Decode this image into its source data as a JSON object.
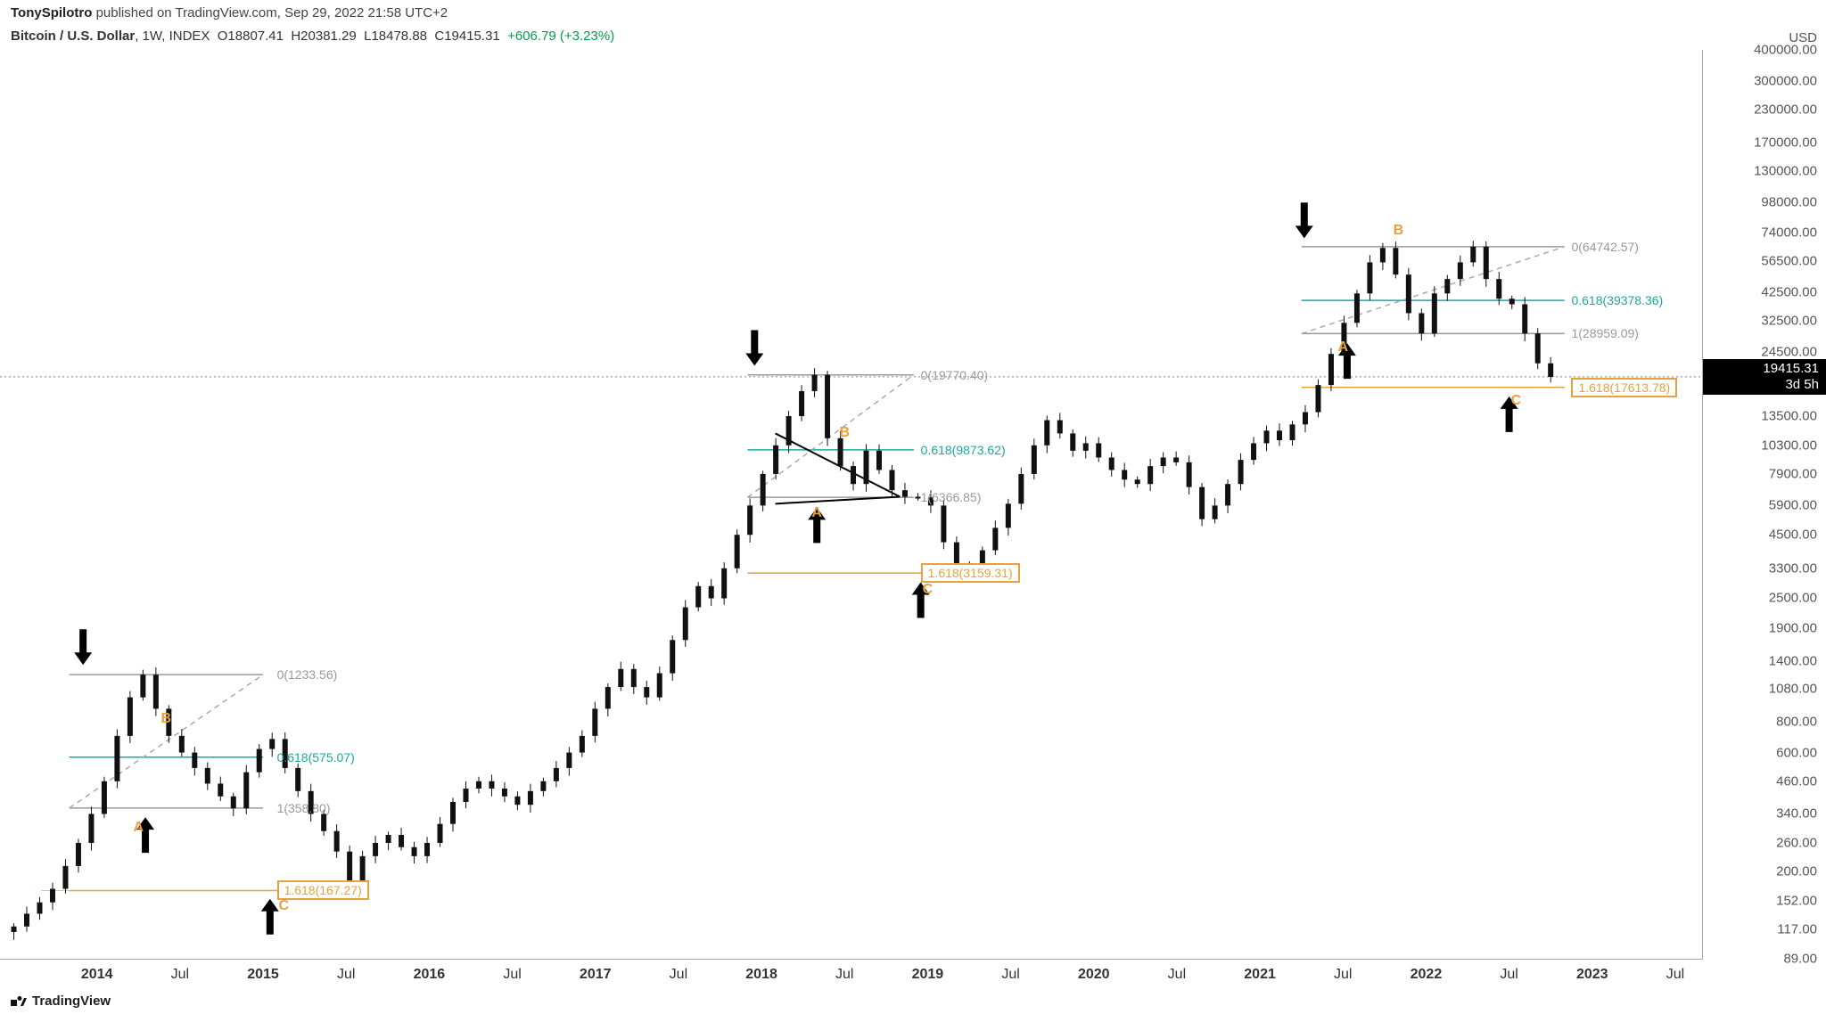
{
  "header": {
    "author": "TonySpilotro",
    "published_on": "published on TradingView.com,",
    "date": "Sep 29, 2022 21:58 UTC+2"
  },
  "symbol": {
    "name": "Bitcoin / U.S. Dollar",
    "interval": "1W",
    "exchange": "INDEX",
    "O": "18807.41",
    "H": "20381.29",
    "L": "18478.88",
    "C": "19415.31",
    "change": "+606.79",
    "change_pct": "(+3.23%)"
  },
  "y_axis": {
    "unit": "USD",
    "scale": "log",
    "ticks": [
      "400000.00",
      "300000.00",
      "230000.00",
      "170000.00",
      "130000.00",
      "98000.00",
      "74000.00",
      "56500.00",
      "42500.00",
      "32500.00",
      "24500.00",
      "19415.31",
      "13500.00",
      "10300.00",
      "7900.00",
      "5900.00",
      "4500.00",
      "3300.00",
      "2500.00",
      "1900.00",
      "1400.00",
      "1080.00",
      "800.00",
      "600.00",
      "460.00",
      "340.00",
      "260.00",
      "200.00",
      "152.00",
      "117.00",
      "89.00"
    ]
  },
  "x_axis": {
    "ticks": [
      {
        "label": "2014",
        "bold": true
      },
      {
        "label": "Jul",
        "bold": false
      },
      {
        "label": "2015",
        "bold": true
      },
      {
        "label": "Jul",
        "bold": false
      },
      {
        "label": "2016",
        "bold": true
      },
      {
        "label": "Jul",
        "bold": false
      },
      {
        "label": "2017",
        "bold": true
      },
      {
        "label": "Jul",
        "bold": false
      },
      {
        "label": "2018",
        "bold": true
      },
      {
        "label": "Jul",
        "bold": false
      },
      {
        "label": "2019",
        "bold": true
      },
      {
        "label": "Jul",
        "bold": false
      },
      {
        "label": "2020",
        "bold": true
      },
      {
        "label": "Jul",
        "bold": false
      },
      {
        "label": "2021",
        "bold": true
      },
      {
        "label": "Jul",
        "bold": false
      },
      {
        "label": "2022",
        "bold": true
      },
      {
        "label": "Jul",
        "bold": false
      },
      {
        "label": "2023",
        "bold": true
      },
      {
        "label": "Jul",
        "bold": false
      }
    ]
  },
  "price_flag": {
    "value": "19415.31",
    "countdown": "3d 5h"
  },
  "fib": {
    "set1": {
      "zero": {
        "label": "0(1233.56)",
        "price": 1233.56,
        "color": "#999999"
      },
      "r618": {
        "label": "0.618(575.07)",
        "price": 575.07,
        "color": "#1aa99d"
      },
      "one": {
        "label": "1(358.80)",
        "price": 358.8,
        "color": "#999999"
      },
      "ext": {
        "label": "1.618(167.27)",
        "price": 167.27,
        "color": "#e6a23c"
      }
    },
    "set2": {
      "zero": {
        "label": "0(19770.40)",
        "price": 19770.4,
        "color": "#999999"
      },
      "r618": {
        "label": "0.618(9873.62)",
        "price": 9873.62,
        "color": "#1aa99d"
      },
      "one": {
        "label": "1(6366.85)",
        "price": 6366.85,
        "color": "#999999"
      },
      "ext": {
        "label": "1.618(3159.31)",
        "price": 3159.31,
        "color": "#e6a23c"
      }
    },
    "set3": {
      "zero": {
        "label": "0(64742.57)",
        "price": 64742.57,
        "color": "#999999"
      },
      "r618": {
        "label": "0.618(39378.36)",
        "price": 39378.36,
        "color": "#1aa99d"
      },
      "one": {
        "label": "1(28959.09)",
        "price": 28959.09,
        "color": "#999999"
      },
      "ext": {
        "label": "1.618(17613.78)",
        "price": 17613.78,
        "color": "#e6a23c"
      }
    }
  },
  "waves": {
    "set1": {
      "A": {
        "label": "A",
        "color": "#e6a23c"
      },
      "B": {
        "label": "B",
        "color": "#e6a23c"
      },
      "C": {
        "label": "C",
        "color": "#e6a23c"
      }
    },
    "set2": {
      "A": {
        "label": "A",
        "color": "#e6a23c"
      },
      "B": {
        "label": "B",
        "color": "#e6a23c"
      },
      "C": {
        "label": "C",
        "color": "#e6a23c"
      }
    },
    "set3": {
      "A": {
        "label": "A",
        "color": "#e6a23c"
      },
      "B": {
        "label": "B",
        "color": "#e6a23c"
      },
      "C": {
        "label": "C",
        "color": "#e6a23c"
      }
    }
  },
  "branding": {
    "text": "TradingView"
  },
  "chart": {
    "type": "candlestick-log",
    "background": "#ffffff",
    "candle_color": "#111111",
    "grid_color": "#d9d9d9",
    "price_range": {
      "min": 89,
      "max": 400000
    },
    "time_range": {
      "start": "2013-06",
      "end": "2023-09"
    },
    "arrows_color": "#000000",
    "fib_ext_box_border": "#e6a23c",
    "fib_618_color": "#1aa99d",
    "fib_default_color": "#999999",
    "crosshair_dotted": "#888888",
    "dashed_trend_color": "#aaaaaa",
    "corrective_waves": [
      {
        "from": "2013-12",
        "A": 358.8,
        "B": 680,
        "C": 167.27
      },
      {
        "from": "2017-12",
        "A": 6366.85,
        "B": 9900,
        "C": 3159.31
      },
      {
        "from": "2021-04",
        "A": 28959.09,
        "B": 64742.57,
        "C": 17613.78
      }
    ],
    "weekly_close_approx": [
      120,
      135,
      150,
      170,
      210,
      260,
      340,
      460,
      700,
      1000,
      1233,
      900,
      700,
      600,
      520,
      450,
      400,
      358,
      500,
      620,
      680,
      520,
      420,
      340,
      290,
      240,
      167,
      230,
      260,
      280,
      250,
      230,
      260,
      310,
      380,
      430,
      460,
      430,
      400,
      370,
      420,
      460,
      520,
      600,
      700,
      900,
      1100,
      1300,
      1100,
      1000,
      1250,
      1700,
      2300,
      2800,
      2500,
      3300,
      4500,
      5900,
      7900,
      10300,
      13500,
      17000,
      19770,
      11000,
      8500,
      7200,
      9800,
      8200,
      6800,
      6400,
      6366,
      5900,
      4200,
      3300,
      3159,
      3900,
      4800,
      6000,
      7900,
      10300,
      13000,
      11500,
      9800,
      10500,
      9200,
      8200,
      7500,
      7200,
      8500,
      9200,
      8800,
      7000,
      5200,
      5900,
      7200,
      9000,
      10500,
      11800,
      10800,
      12500,
      14000,
      18000,
      24000,
      32000,
      42000,
      56000,
      64000,
      50000,
      35000,
      29000,
      42000,
      48000,
      56000,
      64742,
      48000,
      40000,
      38000,
      29000,
      22000,
      19400
    ]
  }
}
